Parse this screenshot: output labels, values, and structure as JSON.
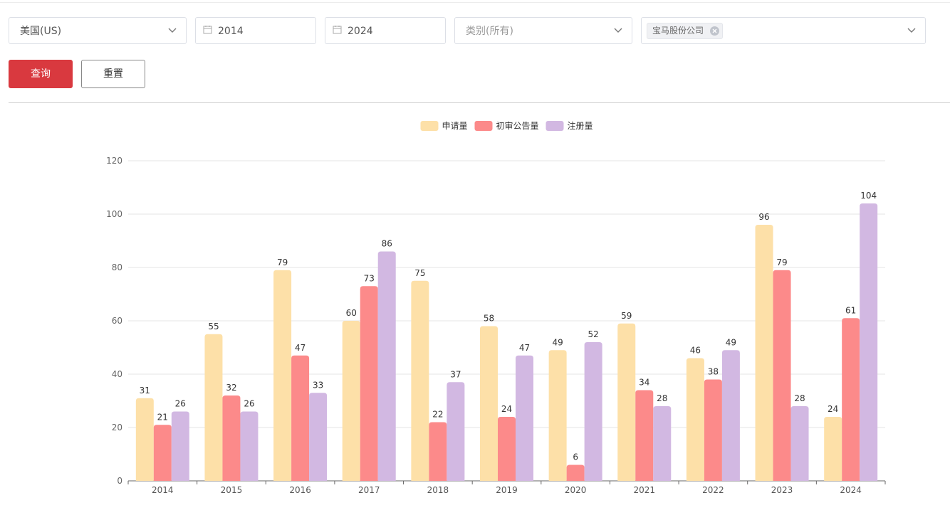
{
  "filters": {
    "country": "美国(US)",
    "year_start": "2014",
    "year_end": "2024",
    "category_placeholder": "类别(所有)",
    "company_tag": "宝马股份公司"
  },
  "buttons": {
    "query": "查询",
    "reset": "重置"
  },
  "colors": {
    "primary": "#d9393f",
    "series": [
      "#fde0a8",
      "#fc8a8a",
      "#d2b8e2"
    ]
  },
  "chart_data": {
    "type": "bar",
    "categories": [
      "2014",
      "2015",
      "2016",
      "2017",
      "2018",
      "2019",
      "2020",
      "2021",
      "2022",
      "2023",
      "2024"
    ],
    "series": [
      {
        "name": "申请量",
        "values": [
          31,
          55,
          79,
          60,
          75,
          58,
          49,
          59,
          46,
          96,
          24
        ]
      },
      {
        "name": "初审公告量",
        "values": [
          21,
          32,
          47,
          73,
          22,
          24,
          6,
          34,
          38,
          79,
          61
        ]
      },
      {
        "name": "注册量",
        "values": [
          26,
          26,
          33,
          86,
          37,
          47,
          52,
          28,
          49,
          28,
          104
        ]
      }
    ],
    "ylim": [
      0,
      120
    ],
    "yticks": [
      0,
      20,
      40,
      60,
      80,
      100,
      120
    ],
    "grid": true,
    "legend": "top-center"
  }
}
